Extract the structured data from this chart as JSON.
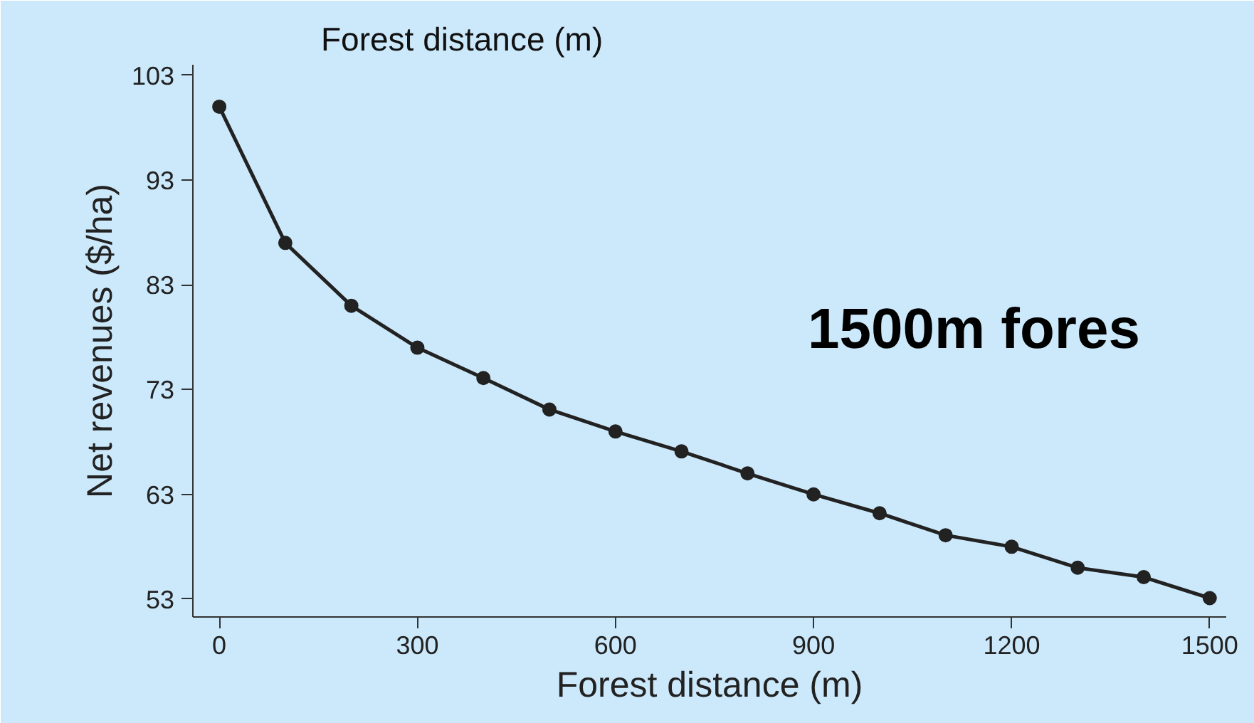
{
  "chart_data": {
    "type": "line",
    "title": "Forest distance (m)",
    "xlabel": "Forest distance (m)",
    "ylabel": "Net revenues ($/ha)",
    "annotations": [
      "1500m fores"
    ],
    "x": [
      0,
      100,
      200,
      300,
      400,
      500,
      600,
      700,
      800,
      900,
      1000,
      1100,
      1200,
      1300,
      1400,
      1500
    ],
    "series": [
      {
        "color": "#222222",
        "values": [
          100.0,
          87.0,
          81.0,
          77.0,
          74.1,
          71.1,
          69.0,
          67.1,
          65.0,
          63.0,
          61.2,
          59.1,
          58.0,
          56.0,
          55.1,
          53.1
        ]
      }
    ],
    "xlim": [
      -40,
      1525
    ],
    "ylim": [
      51.3,
      104
    ],
    "xticks": [
      0,
      300,
      600,
      900,
      1200,
      1500
    ],
    "yticks": [
      53,
      63,
      73,
      83,
      93,
      103
    ],
    "grid": false,
    "marker": "circle",
    "line_style": "solid"
  }
}
